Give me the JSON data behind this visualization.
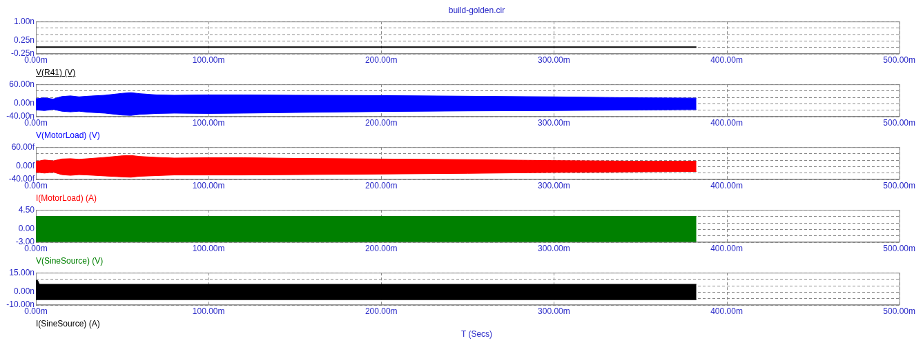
{
  "chart_data": [
    {
      "type": "line",
      "title": "build-golden.cir",
      "legend": "bottom left",
      "marker": "none",
      "grid": true,
      "xlim": [
        0,
        500
      ],
      "xticks": [
        {
          "value": 0,
          "label": "0.00m"
        },
        {
          "value": 100,
          "label": "100.00m"
        },
        {
          "value": 200,
          "label": "200.00m"
        },
        {
          "value": 300,
          "label": "300.00m"
        },
        {
          "value": 400,
          "label": "400.00m"
        },
        {
          "value": 500,
          "label": "500.00m"
        }
      ],
      "ylim": [
        -0.25,
        1
      ],
      "yticks": [
        {
          "value": -0.25,
          "label": "-0.25n"
        },
        {
          "value": 0,
          "label": null
        },
        {
          "value": 0.25,
          "label": "0.25n"
        },
        {
          "value": 0.5,
          "label": null
        },
        {
          "value": 0.75,
          "label": null
        },
        {
          "value": 1,
          "label": "1.00n"
        }
      ],
      "series": [
        {
          "name": "V(R41) (V)",
          "color": "#000000",
          "x": [
            0,
            382.5
          ],
          "values": [
            0,
            0
          ]
        }
      ]
    },
    {
      "type": "area",
      "legend": "bottom left",
      "marker": "none",
      "grid": true,
      "xlim": [
        0,
        500
      ],
      "xticks": [
        {
          "value": 0,
          "label": "0.00m"
        },
        {
          "value": 100,
          "label": "100.00m"
        },
        {
          "value": 200,
          "label": "200.00m"
        },
        {
          "value": 300,
          "label": "300.00m"
        },
        {
          "value": 400,
          "label": "400.00m"
        },
        {
          "value": 500,
          "label": "500.00m"
        }
      ],
      "ylim": [
        -40,
        60
      ],
      "yticks": [
        {
          "value": -40,
          "label": "-40.00n"
        },
        {
          "value": -20,
          "label": null
        },
        {
          "value": 0,
          "label": "0.00n"
        },
        {
          "value": 20,
          "label": null
        },
        {
          "value": 40,
          "label": null
        },
        {
          "value": 60,
          "label": "60.00n"
        }
      ],
      "series": [
        {
          "name": "V(MotorLoad) (V)",
          "color": "#0000ff",
          "x": [
            0,
            5,
            10,
            15,
            20,
            25,
            30,
            40,
            50,
            55,
            60,
            70,
            80,
            100,
            120,
            150,
            200,
            250,
            300,
            350,
            382.5
          ],
          "values": [
            15,
            18,
            14,
            22,
            24,
            21,
            23,
            26,
            32,
            34,
            31,
            27,
            26,
            27,
            27,
            26,
            25,
            23,
            21,
            18,
            17
          ]
        },
        {
          "color": "#0000ff",
          "x": [
            0,
            5,
            10,
            15,
            20,
            25,
            30,
            40,
            50,
            55,
            60,
            70,
            80,
            100,
            120,
            150,
            200,
            250,
            300,
            350,
            382.5
          ],
          "values": [
            -20,
            -22,
            -18,
            -24,
            -26,
            -24,
            -27,
            -30,
            -36,
            -37,
            -34,
            -31,
            -30,
            -31,
            -30,
            -28,
            -25,
            -23,
            -22,
            -20,
            -19
          ]
        }
      ]
    },
    {
      "type": "area",
      "legend": "bottom left",
      "marker": "none",
      "grid": true,
      "xlim": [
        0,
        500
      ],
      "xticks": [
        {
          "value": 0,
          "label": "0.00m"
        },
        {
          "value": 100,
          "label": "100.00m"
        },
        {
          "value": 200,
          "label": "200.00m"
        },
        {
          "value": 300,
          "label": "300.00m"
        },
        {
          "value": 400,
          "label": "400.00m"
        },
        {
          "value": 500,
          "label": "500.00m"
        }
      ],
      "ylim": [
        -40,
        60
      ],
      "yticks": [
        {
          "value": -40,
          "label": "-40.00f"
        },
        {
          "value": -20,
          "label": null
        },
        {
          "value": 0,
          "label": "0.00f"
        },
        {
          "value": 20,
          "label": null
        },
        {
          "value": 40,
          "label": null
        },
        {
          "value": 60,
          "label": "60.00f"
        }
      ],
      "series": [
        {
          "name": "I(MotorLoad) (A)",
          "color": "#ff0000",
          "x": [
            0,
            5,
            10,
            15,
            20,
            25,
            30,
            40,
            50,
            55,
            60,
            70,
            80,
            100,
            120,
            150,
            200,
            250,
            300,
            350,
            382.5
          ],
          "values": [
            15,
            20,
            17,
            23,
            24,
            22,
            24,
            28,
            33,
            34,
            31,
            28,
            26,
            27,
            27,
            25,
            23,
            21,
            18,
            16,
            16
          ]
        },
        {
          "color": "#ff0000",
          "x": [
            0,
            5,
            10,
            15,
            20,
            25,
            30,
            40,
            50,
            55,
            60,
            70,
            80,
            100,
            120,
            150,
            200,
            250,
            300,
            350,
            382.5
          ],
          "values": [
            -18,
            -21,
            -18,
            -26,
            -28,
            -26,
            -27,
            -30,
            -33,
            -34,
            -31,
            -29,
            -27,
            -27,
            -27,
            -26,
            -24,
            -22,
            -19,
            -17,
            -16
          ]
        }
      ]
    },
    {
      "type": "area",
      "legend": "bottom left",
      "marker": "none",
      "grid": true,
      "xlim": [
        0,
        500
      ],
      "xticks": [
        {
          "value": 0,
          "label": "0.00m"
        },
        {
          "value": 100,
          "label": "100.00m"
        },
        {
          "value": 200,
          "label": "200.00m"
        },
        {
          "value": 300,
          "label": "300.00m"
        },
        {
          "value": 400,
          "label": "400.00m"
        },
        {
          "value": 500,
          "label": "500.00m"
        }
      ],
      "ylim": [
        -3,
        4.5
      ],
      "yticks": [
        {
          "value": -3,
          "label": "-3.00"
        },
        {
          "value": -1.5,
          "label": null
        },
        {
          "value": 0,
          "label": "0.00"
        },
        {
          "value": 1.5,
          "label": null
        },
        {
          "value": 3,
          "label": null
        },
        {
          "value": 4.5,
          "label": "4.50"
        }
      ],
      "series": [
        {
          "name": "V(SineSource) (V)",
          "color": "#008000",
          "x": [
            0,
            382.5
          ],
          "values": [
            3,
            3
          ]
        },
        {
          "color": "#008000",
          "x": [
            0,
            382.5
          ],
          "values": [
            -3,
            -3
          ]
        }
      ]
    },
    {
      "type": "area",
      "legend": "bottom left",
      "xlabel": "T (Secs)",
      "marker": "none",
      "grid": true,
      "xlim": [
        0,
        500
      ],
      "xticks": [
        {
          "value": 0,
          "label": "0.00m"
        },
        {
          "value": 100,
          "label": "100.00m"
        },
        {
          "value": 200,
          "label": "200.00m"
        },
        {
          "value": 300,
          "label": "300.00m"
        },
        {
          "value": 400,
          "label": "400.00m"
        },
        {
          "value": 500,
          "label": "500.00m"
        }
      ],
      "ylim": [
        -10,
        15
      ],
      "yticks": [
        {
          "value": -10,
          "label": "-10.00n"
        },
        {
          "value": -5,
          "label": null
        },
        {
          "value": 0,
          "label": "0.00n"
        },
        {
          "value": 5,
          "label": null
        },
        {
          "value": 10,
          "label": null
        },
        {
          "value": 15,
          "label": "15.00n"
        }
      ],
      "series": [
        {
          "name": "I(SineSource) (A)",
          "color": "#000000",
          "x": [
            0,
            1,
            2,
            382.5
          ],
          "values": [
            9,
            9,
            6,
            6
          ]
        },
        {
          "color": "#000000",
          "x": [
            0,
            382.5
          ],
          "values": [
            -6,
            -6
          ]
        }
      ]
    }
  ]
}
